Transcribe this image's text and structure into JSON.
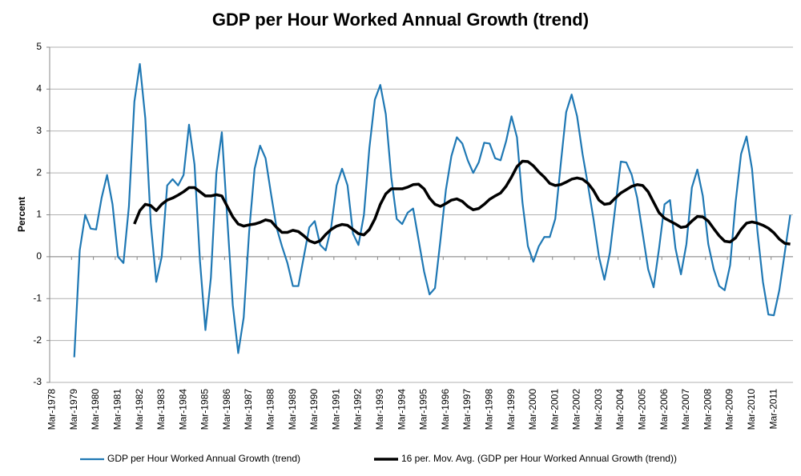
{
  "chart_data": {
    "type": "line",
    "title": "GDP per Hour Worked Annual Growth (trend)",
    "y_label": "Percent",
    "categories": [
      "Mar-1978",
      null,
      null,
      null,
      "Mar-1979",
      null,
      null,
      null,
      "Mar-1980",
      null,
      null,
      null,
      "Mar-1981",
      null,
      null,
      null,
      "Mar-1982",
      null,
      null,
      null,
      "Mar-1983",
      null,
      null,
      null,
      "Mar-1984",
      null,
      null,
      null,
      "Mar-1985",
      null,
      null,
      null,
      "Mar-1986",
      null,
      null,
      null,
      "Mar-1987",
      null,
      null,
      null,
      "Mar-1988",
      null,
      null,
      null,
      "Mar-1989",
      null,
      null,
      null,
      "Mar-1990",
      null,
      null,
      null,
      "Mar-1991",
      null,
      null,
      null,
      "Mar-1992",
      null,
      null,
      null,
      "Mar-1993",
      null,
      null,
      null,
      "Mar-1994",
      null,
      null,
      null,
      "Mar-1995",
      null,
      null,
      null,
      "Mar-1996",
      null,
      null,
      null,
      "Mar-1997",
      null,
      null,
      null,
      "Mar-1998",
      null,
      null,
      null,
      "Mar-1999",
      null,
      null,
      null,
      "Mar-2000",
      null,
      null,
      null,
      "Mar-2001",
      null,
      null,
      null,
      "Mar-2002",
      null,
      null,
      null,
      "Mar-2003",
      null,
      null,
      null,
      "Mar-2004",
      null,
      null,
      null,
      "Mar-2005",
      null,
      null,
      null,
      "Mar-2006",
      null,
      null,
      null,
      "Mar-2007",
      null,
      null,
      null,
      "Mar-2008",
      null,
      null,
      null,
      "Mar-2009",
      null,
      null,
      null,
      "Mar-2010",
      null,
      null,
      null,
      "Mar-2011",
      null,
      null,
      null
    ],
    "series": [
      {
        "name": "GDP per Hour Worked Annual Growth (trend)",
        "color": "#1f78b4",
        "width": 2.2,
        "values": [
          null,
          null,
          null,
          null,
          -2.4,
          0.15,
          1.0,
          0.67,
          0.65,
          1.4,
          1.95,
          1.25,
          0.0,
          -0.15,
          1.2,
          3.7,
          4.6,
          3.3,
          0.8,
          -0.6,
          0.0,
          1.7,
          1.85,
          1.7,
          1.95,
          3.15,
          2.2,
          -0.1,
          -1.75,
          -0.5,
          2.0,
          2.97,
          0.9,
          -1.15,
          -2.3,
          -1.45,
          0.6,
          2.1,
          2.65,
          2.35,
          1.5,
          0.7,
          0.25,
          -0.15,
          -0.7,
          -0.7,
          0.0,
          0.7,
          0.85,
          0.28,
          0.15,
          0.7,
          1.7,
          2.1,
          1.7,
          0.55,
          0.28,
          1.0,
          2.6,
          3.75,
          4.1,
          3.4,
          1.9,
          0.9,
          0.78,
          1.05,
          1.15,
          0.4,
          -0.35,
          -0.9,
          -0.75,
          0.4,
          1.6,
          2.4,
          2.85,
          2.7,
          2.3,
          2.0,
          2.25,
          2.72,
          2.7,
          2.35,
          2.3,
          2.75,
          3.35,
          2.85,
          1.3,
          0.25,
          -0.12,
          0.25,
          0.47,
          0.47,
          0.9,
          2.2,
          3.45,
          3.87,
          3.35,
          2.45,
          1.7,
          0.9,
          0.0,
          -0.55,
          0.1,
          1.2,
          2.27,
          2.25,
          1.95,
          1.4,
          0.55,
          -0.3,
          -0.73,
          0.2,
          1.25,
          1.35,
          0.2,
          -0.42,
          0.3,
          1.65,
          2.08,
          1.45,
          0.3,
          -0.3,
          -0.7,
          -0.8,
          -0.2,
          1.3,
          2.45,
          2.87,
          2.1,
          0.6,
          -0.6,
          -1.38,
          -1.4,
          -0.8,
          0.1,
          1.0
        ]
      },
      {
        "name": "16 per. Mov. Avg. (GDP per Hour Worked Annual Growth (trend))",
        "color": "#000000",
        "width": 3.5,
        "values": [
          null,
          null,
          null,
          null,
          null,
          null,
          null,
          null,
          null,
          null,
          null,
          null,
          null,
          null,
          null,
          0.78,
          1.1,
          1.25,
          1.22,
          1.1,
          1.25,
          1.35,
          1.4,
          1.47,
          1.55,
          1.65,
          1.65,
          1.55,
          1.45,
          1.45,
          1.48,
          1.45,
          1.2,
          0.95,
          0.78,
          0.73,
          0.76,
          0.78,
          0.82,
          0.88,
          0.85,
          0.7,
          0.58,
          0.58,
          0.63,
          0.6,
          0.5,
          0.38,
          0.33,
          0.38,
          0.53,
          0.65,
          0.73,
          0.77,
          0.75,
          0.65,
          0.55,
          0.52,
          0.65,
          0.9,
          1.25,
          1.5,
          1.62,
          1.62,
          1.62,
          1.66,
          1.72,
          1.73,
          1.62,
          1.4,
          1.25,
          1.2,
          1.27,
          1.35,
          1.38,
          1.32,
          1.2,
          1.12,
          1.15,
          1.25,
          1.37,
          1.45,
          1.52,
          1.68,
          1.9,
          2.15,
          2.28,
          2.27,
          2.17,
          2.02,
          1.9,
          1.75,
          1.7,
          1.72,
          1.78,
          1.85,
          1.88,
          1.85,
          1.75,
          1.58,
          1.35,
          1.25,
          1.27,
          1.4,
          1.52,
          1.6,
          1.68,
          1.72,
          1.7,
          1.55,
          1.3,
          1.05,
          0.92,
          0.85,
          0.78,
          0.7,
          0.72,
          0.85,
          0.96,
          0.95,
          0.85,
          0.67,
          0.5,
          0.37,
          0.35,
          0.45,
          0.65,
          0.8,
          0.83,
          0.8,
          0.75,
          0.68,
          0.57,
          0.42,
          0.32,
          0.3
        ]
      }
    ],
    "ylim": [
      -3,
      5
    ],
    "yticks": [
      -3,
      -2,
      -1,
      0,
      1,
      2,
      3,
      4,
      5
    ],
    "grid": true,
    "legend": "bottom"
  }
}
